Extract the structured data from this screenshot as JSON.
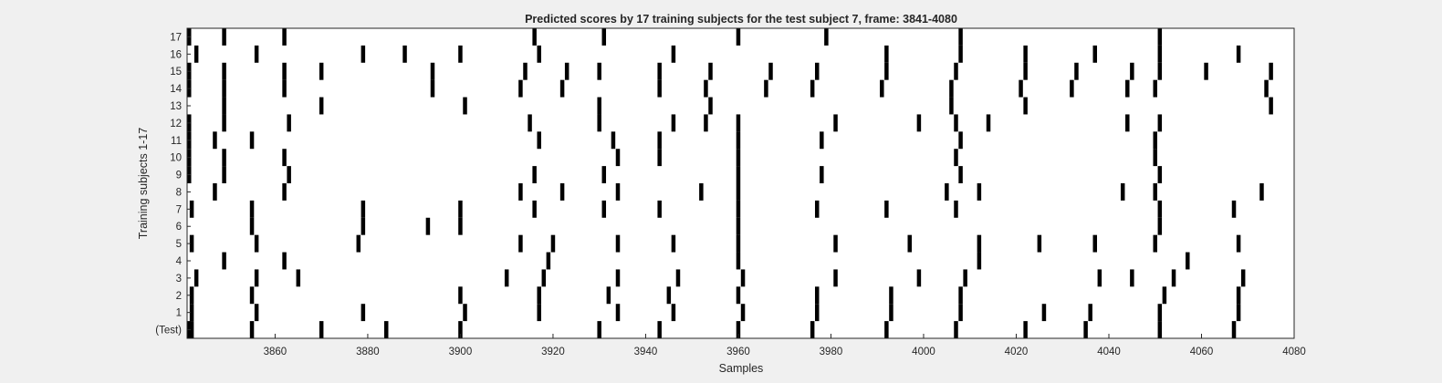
{
  "chart_data": {
    "type": "raster",
    "title": "Predicted scores by 17 training subjects for the test subject 7, frame: 3841-4080",
    "xlabel": "Samples",
    "ylabel": "Training subjects 1-17",
    "xlim": [
      3841,
      4080
    ],
    "x_ticks": [
      3860,
      3880,
      3900,
      3920,
      3940,
      3960,
      3980,
      4000,
      4020,
      4040,
      4060,
      4080
    ],
    "rows": [
      {
        "label": "(Test)",
        "events": [
          3841,
          3842,
          3855,
          3870,
          3884,
          3900,
          3930,
          3943,
          3960,
          3976,
          3992,
          4007,
          4022,
          4035,
          4051,
          4067
        ]
      },
      {
        "label": "1",
        "events": [
          3842,
          3856,
          3879,
          3901,
          3917,
          3934,
          3946,
          3961,
          3977,
          3993,
          4008,
          4026,
          4036,
          4051,
          4068
        ]
      },
      {
        "label": "2",
        "events": [
          3842,
          3855,
          3900,
          3917,
          3932,
          3945,
          3960,
          3977,
          3993,
          4008,
          4052,
          4068
        ]
      },
      {
        "label": "3",
        "events": [
          3843,
          3856,
          3865,
          3910,
          3918,
          3934,
          3947,
          3961,
          3981,
          3999,
          4009,
          4038,
          4045,
          4054,
          4069
        ]
      },
      {
        "label": "4",
        "events": [
          3849,
          3862,
          3919,
          3960,
          4012,
          4057
        ]
      },
      {
        "label": "5",
        "events": [
          3842,
          3856,
          3878,
          3913,
          3920,
          3934,
          3946,
          3960,
          3981,
          3997,
          4012,
          4025,
          4037,
          4050,
          4068
        ]
      },
      {
        "label": "6",
        "events": [
          3855,
          3879,
          3893,
          3900,
          3960,
          4051
        ]
      },
      {
        "label": "7",
        "events": [
          3842,
          3855,
          3879,
          3900,
          3916,
          3931,
          3943,
          3960,
          3977,
          3992,
          4007,
          4051,
          4067
        ]
      },
      {
        "label": "8",
        "events": [
          3847,
          3862,
          3913,
          3922,
          3934,
          3952,
          3960,
          4005,
          4012,
          4043,
          4050,
          4073
        ]
      },
      {
        "label": "9",
        "events": [
          3841,
          3849,
          3863,
          3916,
          3931,
          3960,
          3978,
          4008,
          4051
        ]
      },
      {
        "label": "10",
        "events": [
          3841,
          3849,
          3862,
          3934,
          3943,
          3960,
          4007,
          4050
        ]
      },
      {
        "label": "11",
        "events": [
          3841,
          3847,
          3855,
          3917,
          3933,
          3943,
          3960,
          3978,
          4008,
          4050
        ]
      },
      {
        "label": "12",
        "events": [
          3841,
          3849,
          3863,
          3915,
          3930,
          3946,
          3953,
          3960,
          3981,
          3999,
          4007,
          4014,
          4044,
          4051
        ]
      },
      {
        "label": "13",
        "events": [
          3849,
          3870,
          3901,
          3930,
          3954,
          4006,
          4022,
          4075
        ]
      },
      {
        "label": "14",
        "events": [
          3841,
          3849,
          3862,
          3894,
          3913,
          3922,
          3943,
          3953,
          3966,
          3976,
          3991,
          4006,
          4021,
          4032,
          4044,
          4050,
          4074
        ]
      },
      {
        "label": "15",
        "events": [
          3841,
          3849,
          3862,
          3870,
          3894,
          3914,
          3923,
          3930,
          3943,
          3954,
          3967,
          3977,
          3992,
          4007,
          4022,
          4033,
          4045,
          4051,
          4061,
          4075
        ]
      },
      {
        "label": "16",
        "events": [
          3843,
          3856,
          3879,
          3888,
          3900,
          3917,
          3946,
          3992,
          4008,
          4022,
          4037,
          4051,
          4068
        ]
      },
      {
        "label": "17",
        "events": [
          3841,
          3849,
          3862,
          3916,
          3931,
          3960,
          3979,
          4008,
          4051
        ]
      }
    ],
    "grid": false,
    "colors": {
      "event": "#000000",
      "background": "#ffffff",
      "figure": "#f0f0f0"
    }
  }
}
